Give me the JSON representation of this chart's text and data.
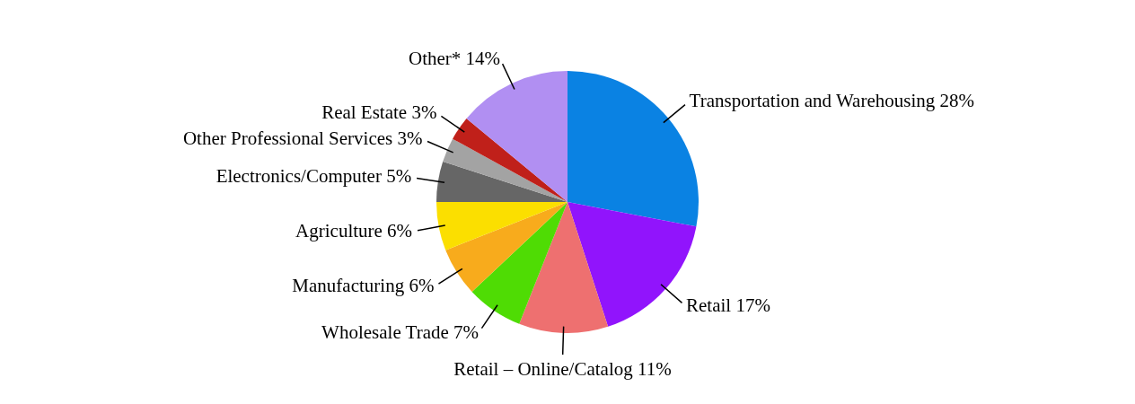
{
  "chart_data": {
    "type": "pie",
    "categories": [
      "Transportation and Warehousing",
      "Retail",
      "Retail – Online/Catalog",
      "Wholesale Trade",
      "Manufacturing",
      "Agriculture",
      "Electronics/Computer",
      "Other Professional Services",
      "Real Estate",
      "Other*"
    ],
    "values": [
      28,
      17,
      11,
      7,
      6,
      6,
      5,
      3,
      3,
      14
    ],
    "value_labels": [
      "28%",
      "17%",
      "11%",
      "7%",
      "6%",
      "6%",
      "5%",
      "3%",
      "3%",
      "14%"
    ],
    "colors": [
      "#0a82e3",
      "#9114fc",
      "#ee7070",
      "#4fdc04",
      "#f8ab1c",
      "#fbdf00",
      "#666666",
      "#a3a3a3",
      "#c0201a",
      "#b18ff2"
    ]
  }
}
